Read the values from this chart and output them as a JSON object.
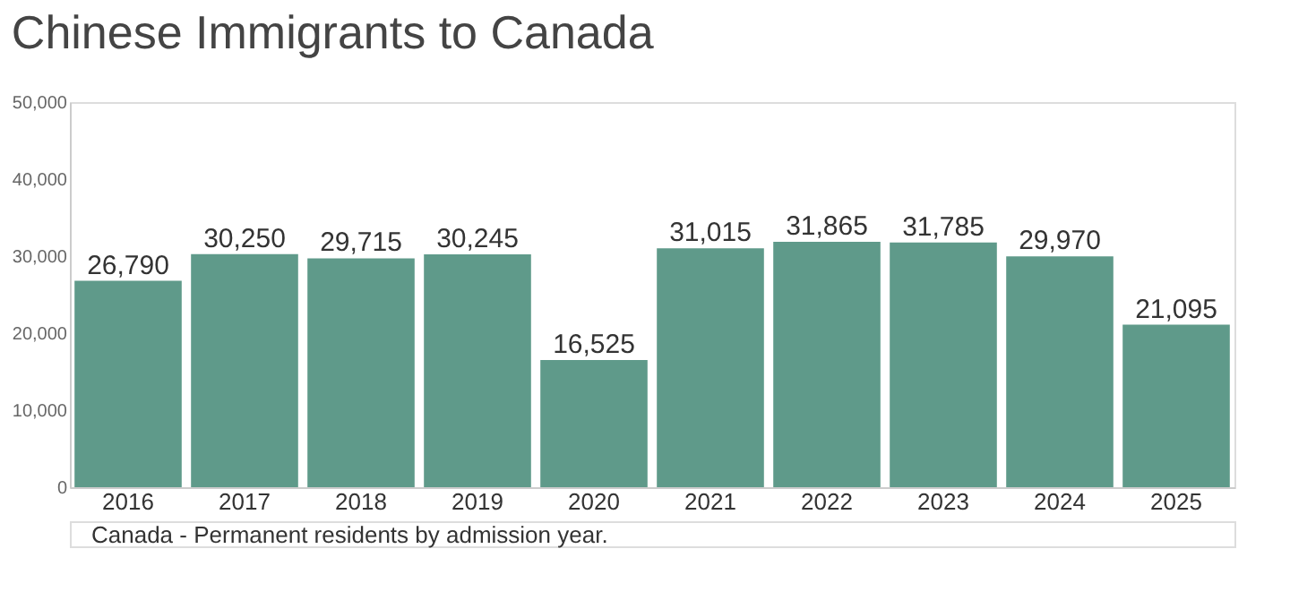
{
  "chart_data": {
    "type": "bar",
    "title": "Chinese Immigrants to Canada",
    "categories": [
      "2016",
      "2017",
      "2018",
      "2019",
      "2020",
      "2021",
      "2022",
      "2023",
      "2024",
      "2025"
    ],
    "values": [
      26790,
      30250,
      29715,
      30245,
      16525,
      31015,
      31865,
      31785,
      29970,
      21095
    ],
    "value_labels": [
      "26,790",
      "30,250",
      "29,715",
      "30,245",
      "16,525",
      "31,015",
      "31,865",
      "31,785",
      "29,970",
      "21,095"
    ],
    "color": "#5f9a8a",
    "ylim": [
      0,
      50000
    ],
    "yticks": [
      {
        "value": 0,
        "label": "0"
      },
      {
        "value": 10000,
        "label": "10,000"
      },
      {
        "value": 20000,
        "label": "20,000"
      },
      {
        "value": 30000,
        "label": "30,000"
      },
      {
        "value": 40000,
        "label": "40,000"
      },
      {
        "value": 50000,
        "label": "50,000"
      }
    ],
    "grid": false,
    "annotations": [
      "Canada - Permanent residents by admission year."
    ]
  }
}
